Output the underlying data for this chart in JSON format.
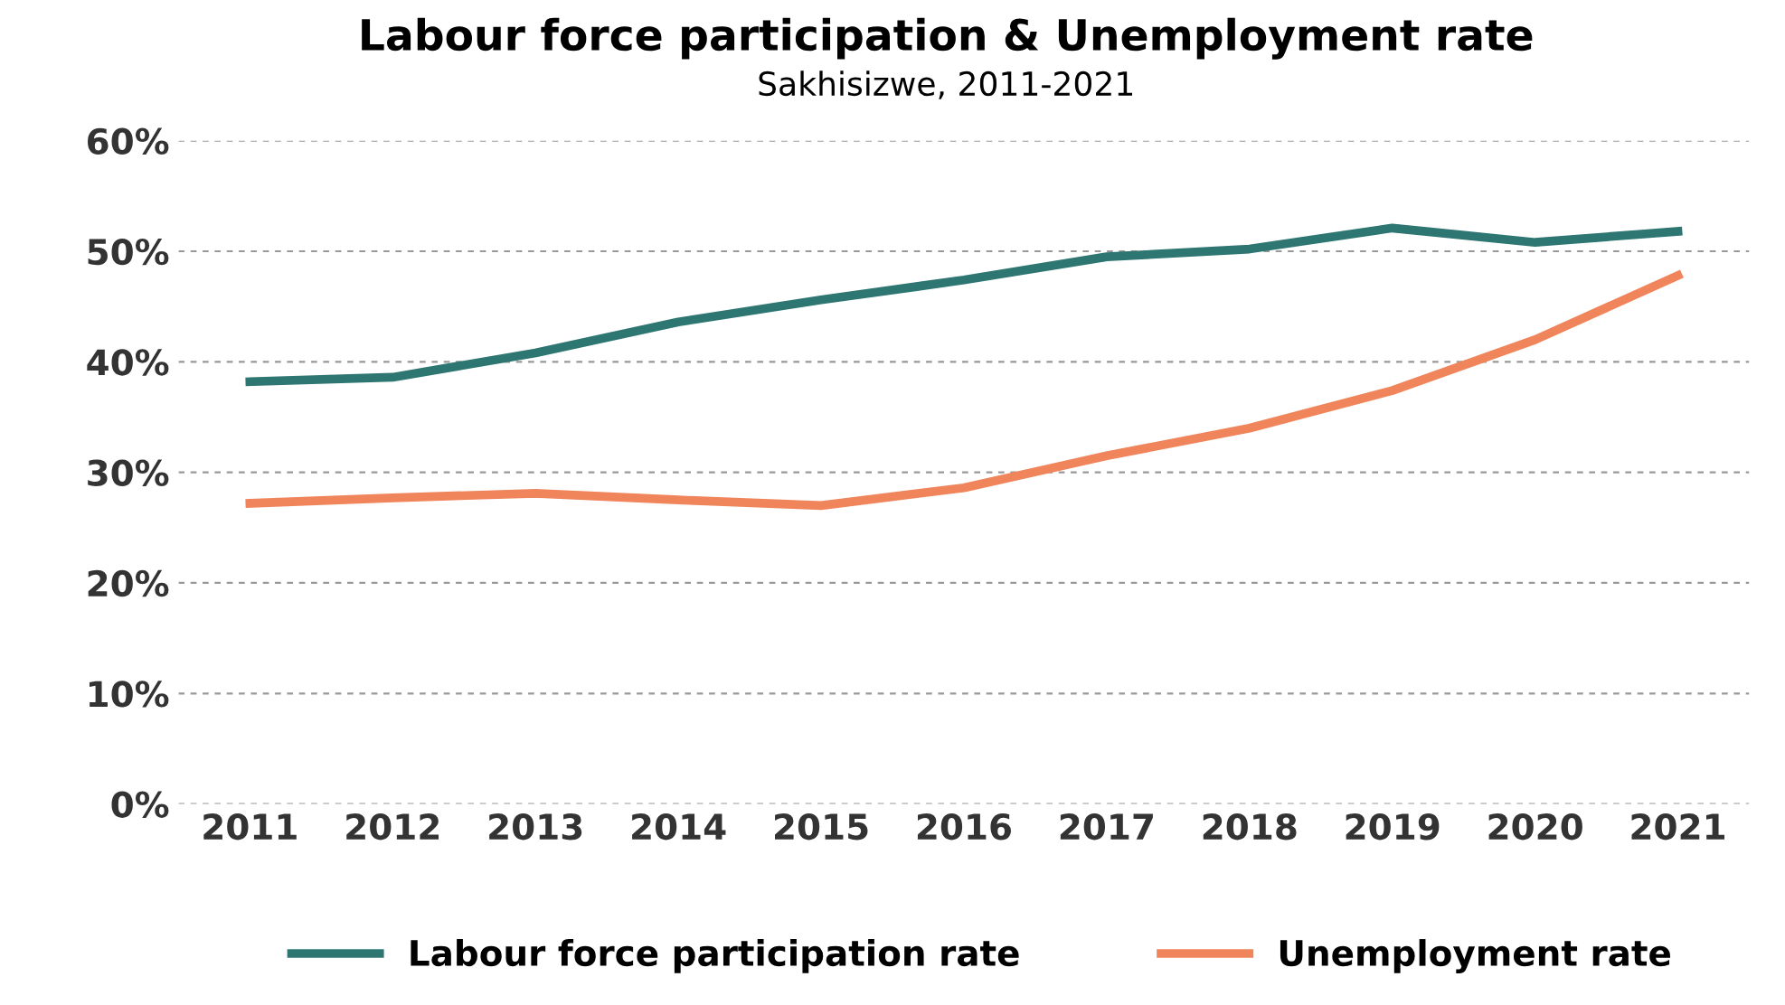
{
  "chart_data": {
    "type": "line",
    "title": "Labour force participation & Unemployment rate",
    "subtitle": "Sakhisizwe, 2011-2021",
    "categories": [
      "2011",
      "2012",
      "2013",
      "2014",
      "2015",
      "2016",
      "2017",
      "2018",
      "2019",
      "2020",
      "2021"
    ],
    "series": [
      {
        "name": "Labour force participation rate",
        "color": "#2e7672",
        "values": [
          38.2,
          38.6,
          40.8,
          43.6,
          45.6,
          47.4,
          49.5,
          50.2,
          52.1,
          50.8,
          51.8
        ]
      },
      {
        "name": "Unemployment rate",
        "color": "#f0845a",
        "values": [
          27.2,
          27.7,
          28.1,
          27.5,
          27.0,
          28.6,
          31.5,
          34.0,
          37.4,
          42.0,
          47.8
        ]
      }
    ],
    "ylim": [
      0,
      60
    ],
    "yticks": [
      {
        "value": 0,
        "label": "0%"
      },
      {
        "value": 10,
        "label": "10%"
      },
      {
        "value": 20,
        "label": "20%"
      },
      {
        "value": 30,
        "label": "30%"
      },
      {
        "value": 40,
        "label": "40%"
      },
      {
        "value": 50,
        "label": "50%"
      },
      {
        "value": 60,
        "label": "60%"
      }
    ],
    "grid": "y",
    "legend": "bottom",
    "marker": "none",
    "line_style": "solid"
  }
}
